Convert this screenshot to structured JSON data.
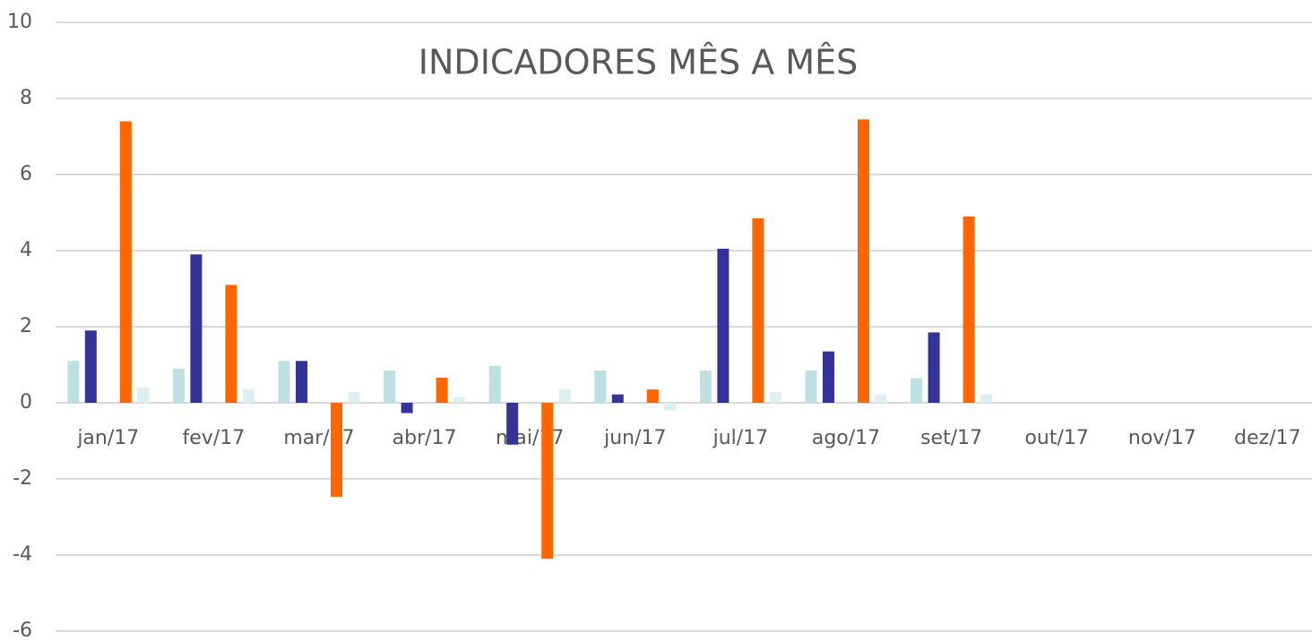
{
  "chart_data": {
    "type": "bar",
    "title": "INDICADORES MÊS A MÊS",
    "categories": [
      "jan/17",
      "fev/17",
      "mar/17",
      "abr/17",
      "mai/17",
      "jun/17",
      "jul/17",
      "ago/17",
      "set/17",
      "out/17",
      "nov/17",
      "dez/17"
    ],
    "series": [
      {
        "color": "#bde0e4",
        "values": [
          1.1,
          0.9,
          1.1,
          0.85,
          0.97,
          0.85,
          0.85,
          0.85,
          0.65,
          null,
          null,
          null
        ]
      },
      {
        "color": "#333399",
        "values": [
          1.9,
          3.9,
          1.1,
          -0.27,
          -1.1,
          0.22,
          4.05,
          1.35,
          1.85,
          null,
          null,
          null
        ]
      },
      {
        "color": "#ff6600",
        "values": [
          7.4,
          3.1,
          -2.47,
          0.66,
          -4.1,
          0.35,
          4.85,
          7.45,
          4.9,
          null,
          null,
          null
        ]
      },
      {
        "color": "#dcf0f2",
        "values": [
          0.4,
          0.35,
          0.28,
          0.15,
          0.35,
          -0.2,
          0.28,
          0.22,
          0.22,
          null,
          null,
          null
        ]
      }
    ],
    "ylim": [
      -6,
      10
    ],
    "yticks": [
      -6,
      -4,
      -2,
      0,
      2,
      4,
      6,
      8,
      10
    ],
    "grid": true
  }
}
